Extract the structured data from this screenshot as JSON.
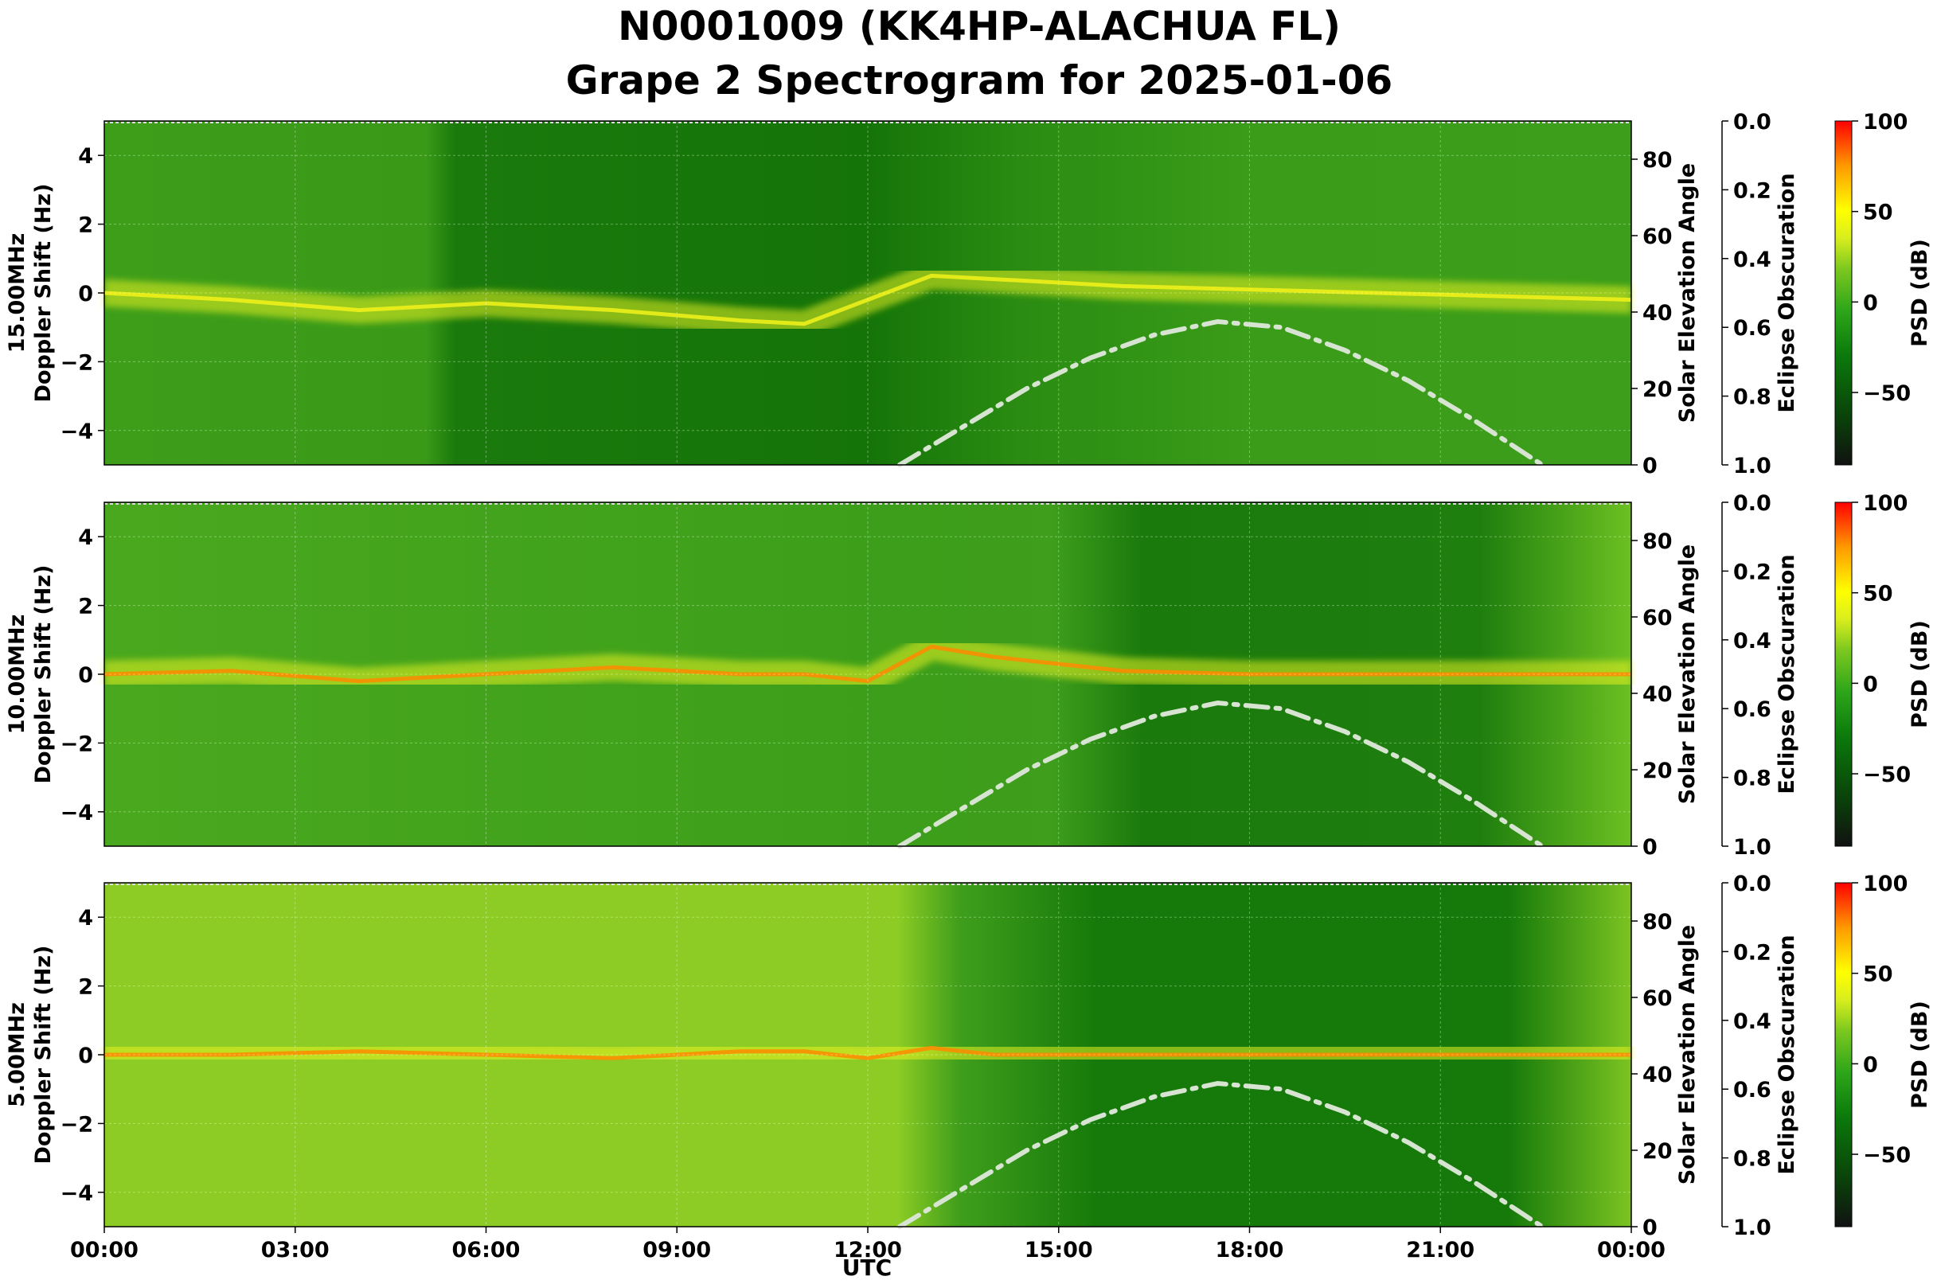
{
  "chart_data": {
    "type": "heatmap",
    "title_line1": "N0001009 (KK4HP-ALACHUA FL)",
    "title_line2": "Grape 2 Spectrogram for 2025-01-06",
    "xlabel": "UTC",
    "x_ticks": [
      "00:00",
      "03:00",
      "06:00",
      "09:00",
      "12:00",
      "15:00",
      "18:00",
      "21:00",
      "00:00"
    ],
    "x_range_hours": [
      0,
      24
    ],
    "ylabel_right1": "Solar Elevation Angle",
    "ylabel_right2": "Eclipse Obscuration",
    "y_ticks": [
      "4",
      "2",
      "0",
      "−2",
      "−4"
    ],
    "y_values": [
      4,
      2,
      0,
      -2,
      -4
    ],
    "ylim": [
      -5,
      5
    ],
    "elev_ticks": [
      "80",
      "60",
      "40",
      "20",
      "0"
    ],
    "elev_values": [
      80,
      60,
      40,
      20,
      0
    ],
    "elev_range": [
      0,
      90
    ],
    "obsc_ticks": [
      "0.0",
      "0.2",
      "0.4",
      "0.6",
      "0.8",
      "1.0"
    ],
    "obsc_values": [
      0,
      0.2,
      0.4,
      0.6,
      0.8,
      1.0
    ],
    "colorbar_label": "PSD (dB)",
    "colorbar_ticks": [
      "100",
      "50",
      "0",
      "−50"
    ],
    "colorbar_values": [
      100,
      50,
      0,
      -50
    ],
    "colorbar_range": [
      -90,
      100
    ],
    "colorbar_colors": [
      "#111111",
      "#0a3f0a",
      "#0b7a0b",
      "#2ea61a",
      "#7cc81f",
      "#d9ee1e",
      "#ffff00",
      "#ff9900",
      "#ff0000"
    ],
    "solar_elevation_curve": {
      "hours": [
        12.5,
        13.5,
        14.5,
        15.5,
        16.5,
        17.5,
        18.5,
        19.5,
        20.5,
        21.5,
        22.6
      ],
      "degrees": [
        0,
        10,
        20,
        28,
        34,
        37.5,
        36,
        30,
        22,
        12,
        0
      ]
    },
    "panels": [
      {
        "ylabel_freq": "15.00MHz",
        "ylabel_shift": "Doppler Shift (Hz)",
        "carrier_trace": {
          "hours": [
            0,
            2,
            4,
            6,
            8,
            10,
            11,
            12,
            13,
            14,
            16,
            18,
            20,
            22,
            24
          ],
          "hz": [
            0,
            -0.2,
            -0.5,
            -0.3,
            -0.5,
            -0.8,
            -0.9,
            -0.2,
            0.5,
            0.4,
            0.2,
            0.1,
            0.0,
            -0.1,
            -0.2
          ]
        }
      },
      {
        "ylabel_freq": "10.00MHz",
        "ylabel_shift": "Doppler Shift (Hz)",
        "carrier_trace": {
          "hours": [
            0,
            2,
            4,
            6,
            8,
            10,
            11,
            12,
            13,
            14,
            16,
            18,
            20,
            22,
            24
          ],
          "hz": [
            0,
            0.1,
            -0.2,
            0.0,
            0.2,
            0.0,
            0.0,
            -0.2,
            0.8,
            0.5,
            0.1,
            0.0,
            0.0,
            0.0,
            0.0
          ]
        }
      },
      {
        "ylabel_freq": "5.00MHz",
        "ylabel_shift": "Doppler Shift (Hz)",
        "carrier_trace": {
          "hours": [
            0,
            2,
            4,
            6,
            8,
            10,
            11,
            12,
            13,
            14,
            16,
            18,
            20,
            22,
            24
          ],
          "hz": [
            0,
            0.0,
            0.1,
            0.0,
            -0.1,
            0.1,
            0.1,
            -0.1,
            0.2,
            0.0,
            0.0,
            0.0,
            0.0,
            0.0,
            0.0
          ]
        }
      }
    ]
  }
}
